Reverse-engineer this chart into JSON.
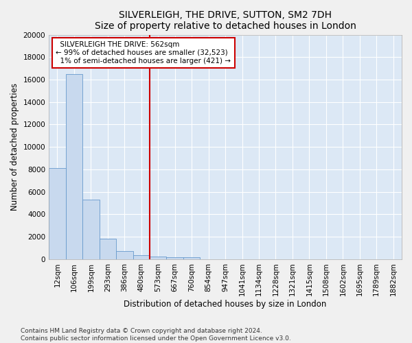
{
  "title": "SILVERLEIGH, THE DRIVE, SUTTON, SM2 7DH",
  "subtitle": "Size of property relative to detached houses in London",
  "xlabel": "Distribution of detached houses by size in London",
  "ylabel": "Number of detached properties",
  "bar_color": "#c8d9ee",
  "bar_edge_color": "#6699cc",
  "background_color": "#dce8f5",
  "grid_color": "#ffffff",
  "categories": [
    "12sqm",
    "106sqm",
    "199sqm",
    "293sqm",
    "386sqm",
    "480sqm",
    "573sqm",
    "667sqm",
    "760sqm",
    "854sqm",
    "947sqm",
    "1041sqm",
    "1134sqm",
    "1228sqm",
    "1321sqm",
    "1415sqm",
    "1508sqm",
    "1602sqm",
    "1695sqm",
    "1789sqm",
    "1882sqm"
  ],
  "values": [
    8100,
    16500,
    5300,
    1850,
    700,
    350,
    250,
    180,
    150,
    0,
    0,
    0,
    0,
    0,
    0,
    0,
    0,
    0,
    0,
    0,
    0
  ],
  "marker_line_idx": 6,
  "marker_line_color": "#cc0000",
  "annotation_text": "  SILVERLEIGH THE DRIVE: 562sqm\n← 99% of detached houses are smaller (32,523)\n  1% of semi-detached houses are larger (421) →",
  "annotation_box_color": "#ffffff",
  "annotation_box_edge": "#cc0000",
  "ylim": [
    0,
    20000
  ],
  "yticks": [
    0,
    2000,
    4000,
    6000,
    8000,
    10000,
    12000,
    14000,
    16000,
    18000,
    20000
  ],
  "footer": "Contains HM Land Registry data © Crown copyright and database right 2024.\nContains public sector information licensed under the Open Government Licence v3.0.",
  "title_fontsize": 10,
  "axis_label_fontsize": 8.5,
  "tick_fontsize": 7.5,
  "annotation_fontsize": 7.5,
  "footer_fontsize": 6.5
}
